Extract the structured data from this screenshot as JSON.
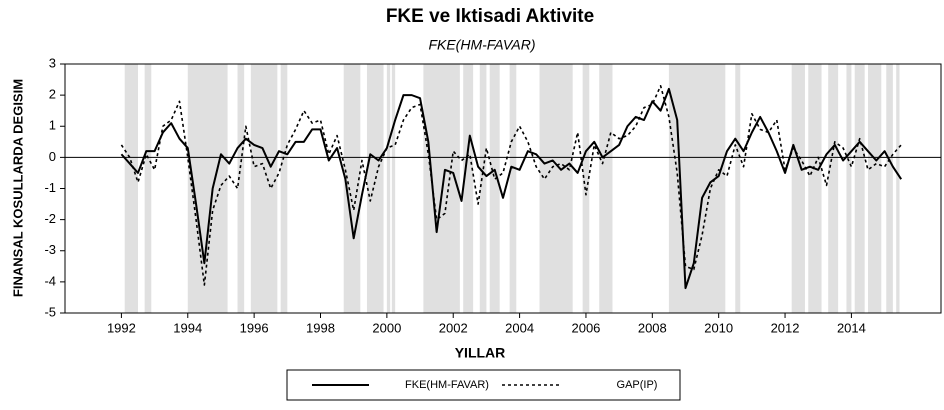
{
  "chart_data": {
    "type": "line",
    "title": "FKE ve Iktisadi Aktivite",
    "subtitle": "FKE(HM-FAVAR)",
    "xlabel": "YILLAR",
    "ylabel": "FINANSAL KOSULLARDA DEGISIM",
    "xlim": [
      1990.3,
      2016.7
    ],
    "xticks": [
      1992,
      1994,
      1996,
      1998,
      2000,
      2002,
      2004,
      2006,
      2008,
      2010,
      2012,
      2014
    ],
    "ylim": [
      -5,
      3
    ],
    "yticks": [
      -5,
      -4,
      -3,
      -2,
      -1,
      0,
      1,
      2,
      3
    ],
    "grid": false,
    "zero_line": true,
    "shade_color": "#e0e0e0",
    "shaded": [
      [
        1992.1,
        1992.5
      ],
      [
        1992.7,
        1992.9
      ],
      [
        1994.0,
        1995.2
      ],
      [
        1995.5,
        1995.7
      ],
      [
        1995.9,
        1996.7
      ],
      [
        1996.8,
        1997.0
      ],
      [
        1998.7,
        1999.2
      ],
      [
        1999.4,
        1999.9
      ],
      [
        2000.0,
        2000.1
      ],
      [
        2000.15,
        2000.25
      ],
      [
        2001.1,
        2002.2
      ],
      [
        2002.3,
        2002.6
      ],
      [
        2002.8,
        2003.0
      ],
      [
        2003.1,
        2003.4
      ],
      [
        2003.7,
        2003.9
      ],
      [
        2004.6,
        2005.6
      ],
      [
        2005.9,
        2006.1
      ],
      [
        2006.4,
        2006.8
      ],
      [
        2008.5,
        2010.2
      ],
      [
        2010.5,
        2010.65
      ],
      [
        2012.2,
        2012.6
      ],
      [
        2012.7,
        2013.1
      ],
      [
        2013.3,
        2013.6
      ],
      [
        2013.85,
        2014.0
      ],
      [
        2014.1,
        2014.4
      ],
      [
        2014.5,
        2014.9
      ],
      [
        2015.05,
        2015.25
      ],
      [
        2015.35,
        2015.45
      ]
    ],
    "x": [
      1992.0,
      1992.25,
      1992.5,
      1992.75,
      1993.0,
      1993.25,
      1993.5,
      1993.75,
      1994.0,
      1994.25,
      1994.5,
      1994.75,
      1995.0,
      1995.25,
      1995.5,
      1995.75,
      1996.0,
      1996.25,
      1996.5,
      1996.75,
      1997.0,
      1997.25,
      1997.5,
      1997.75,
      1998.0,
      1998.25,
      1998.5,
      1998.75,
      1999.0,
      1999.25,
      1999.5,
      1999.75,
      2000.0,
      2000.25,
      2000.5,
      2000.75,
      2001.0,
      2001.25,
      2001.5,
      2001.75,
      2002.0,
      2002.25,
      2002.5,
      2002.75,
      2003.0,
      2003.25,
      2003.5,
      2003.75,
      2004.0,
      2004.25,
      2004.5,
      2004.75,
      2005.0,
      2005.25,
      2005.5,
      2005.75,
      2006.0,
      2006.25,
      2006.5,
      2006.75,
      2007.0,
      2007.25,
      2007.5,
      2007.75,
      2008.0,
      2008.25,
      2008.5,
      2008.75,
      2009.0,
      2009.25,
      2009.5,
      2009.75,
      2010.0,
      2010.25,
      2010.5,
      2010.75,
      2011.0,
      2011.25,
      2011.5,
      2011.75,
      2012.0,
      2012.25,
      2012.5,
      2012.75,
      2013.0,
      2013.25,
      2013.5,
      2013.75,
      2014.0,
      2014.25,
      2014.5,
      2014.75,
      2015.0,
      2015.25,
      2015.5
    ],
    "series": [
      {
        "name": "FKE(HM-FAVAR)",
        "color": "#000000",
        "dash": "none",
        "width": 2,
        "values": [
          0.1,
          -0.2,
          -0.5,
          0.2,
          0.2,
          0.8,
          1.1,
          0.6,
          0.3,
          -1.5,
          -3.4,
          -1.0,
          0.1,
          -0.2,
          0.3,
          0.6,
          0.4,
          0.3,
          -0.3,
          0.2,
          0.1,
          0.5,
          0.5,
          0.9,
          0.9,
          -0.1,
          0.3,
          -0.7,
          -2.6,
          -1.2,
          0.1,
          -0.1,
          0.3,
          1.2,
          2.0,
          2.0,
          1.9,
          0.5,
          -2.4,
          -0.4,
          -0.5,
          -1.4,
          0.7,
          -0.3,
          -0.6,
          -0.4,
          -1.3,
          -0.3,
          -0.4,
          0.2,
          0.1,
          -0.2,
          -0.1,
          -0.4,
          -0.2,
          -0.5,
          0.2,
          0.5,
          0.0,
          0.2,
          0.4,
          1.0,
          1.3,
          1.2,
          1.8,
          1.5,
          2.2,
          1.2,
          -4.2,
          -3.4,
          -1.3,
          -0.8,
          -0.6,
          0.2,
          0.6,
          0.2,
          0.8,
          1.3,
          0.8,
          0.2,
          -0.5,
          0.4,
          -0.4,
          -0.3,
          -0.4,
          0.1,
          0.4,
          -0.1,
          0.2,
          0.5,
          0.2,
          -0.1,
          0.2,
          -0.3,
          -0.7
        ]
      },
      {
        "name": "GAP(IP)",
        "color": "#000000",
        "dash": "3,3",
        "width": 1.6,
        "values": [
          0.4,
          0.0,
          -0.8,
          0.1,
          -0.4,
          1.0,
          1.2,
          1.8,
          0.0,
          -2.0,
          -4.1,
          -1.7,
          -0.9,
          -0.6,
          -1.0,
          1.0,
          -0.3,
          -0.2,
          -1.0,
          -0.5,
          0.4,
          0.9,
          1.5,
          1.1,
          1.2,
          0.1,
          0.7,
          -0.4,
          -1.7,
          -0.1,
          -1.4,
          -0.3,
          0.3,
          0.4,
          1.2,
          1.6,
          1.7,
          0.1,
          -2.0,
          -1.8,
          0.2,
          -0.1,
          0.1,
          -1.5,
          0.3,
          -0.7,
          -0.5,
          0.5,
          1.0,
          0.5,
          -0.3,
          -0.7,
          -0.3,
          -0.2,
          -0.4,
          0.8,
          -1.2,
          0.4,
          -0.2,
          0.8,
          0.6,
          0.7,
          1.0,
          1.6,
          1.7,
          2.3,
          1.3,
          -0.5,
          -3.5,
          -3.6,
          -2.5,
          -1.0,
          -0.4,
          -0.6,
          0.4,
          -0.3,
          1.4,
          0.9,
          0.8,
          1.2,
          -0.4,
          0.3,
          -0.1,
          -0.6,
          0.0,
          -0.9,
          0.5,
          0.3,
          -0.3,
          0.6,
          -0.4,
          -0.2,
          -0.3,
          0.1,
          0.4
        ]
      }
    ]
  }
}
